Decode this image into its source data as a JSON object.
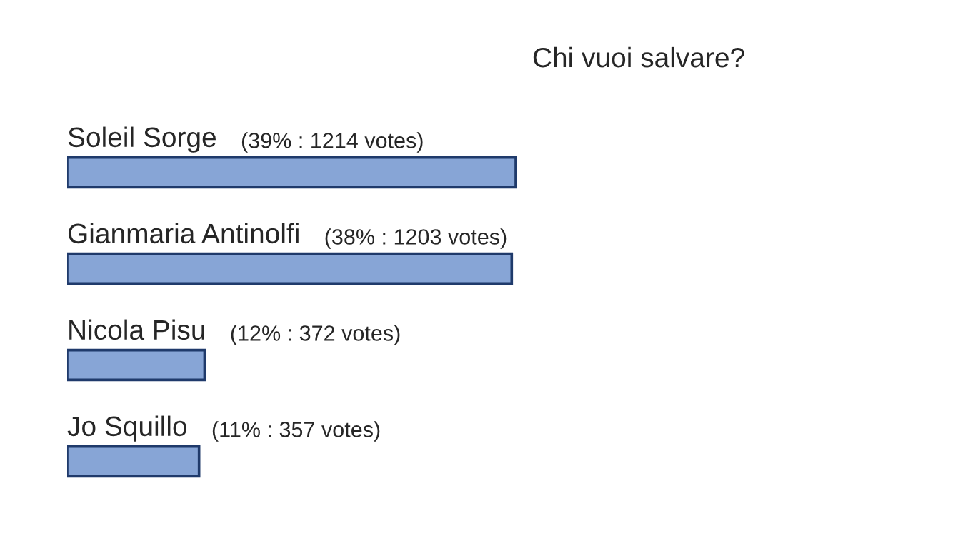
{
  "chart_data": {
    "type": "bar",
    "orientation": "horizontal",
    "title": "Chi vuoi salvare?",
    "categories": [
      "Soleil Sorge",
      "Gianmaria Antinolfi",
      "Nicola Pisu",
      "Jo Squillo"
    ],
    "values": [
      1214,
      1203,
      372,
      357
    ],
    "value_labels": [
      "(39% : 1214 votes)",
      "(38% : 1203 votes)",
      "(12% : 372 votes)",
      "(11% : 357 votes)"
    ],
    "color": "#87a5d6"
  }
}
